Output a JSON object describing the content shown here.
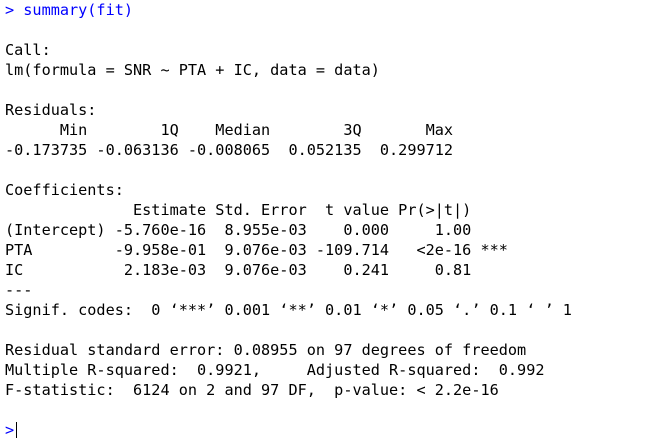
{
  "command": "> summary(fit)",
  "call": {
    "heading": "Call:",
    "formula": "lm(formula = SNR ~ PTA + IC, data = data)"
  },
  "residuals": {
    "heading": "Residuals:",
    "header": "      Min        1Q    Median        3Q       Max",
    "values": "-0.173735 -0.063136 -0.008065  0.052135  0.299712"
  },
  "coefficients": {
    "heading": "Coefficients:",
    "header": "              Estimate Std. Error  t value Pr(>|t|)",
    "rows": [
      "(Intercept) -5.760e-16  8.955e-03    0.000     1.00",
      "PTA         -9.958e-01  9.076e-03 -109.714   <2e-16 ***",
      "IC           2.183e-03  9.076e-03    0.241     0.81"
    ],
    "separator": "---",
    "signif": "Signif. codes:  0 ‘***’ 0.001 ‘**’ 0.01 ‘*’ 0.05 ‘.’ 0.1 ‘ ’ 1"
  },
  "stats": {
    "rse": "Residual standard error: 0.08955 on 97 degrees of freedom",
    "r2": "Multiple R-squared:  0.9921,\tAdjusted R-squared:  0.992",
    "fstat": "F-statistic:  6124 on 2 and 97 DF,  p-value: < 2.2e-16"
  },
  "prompt": ">"
}
